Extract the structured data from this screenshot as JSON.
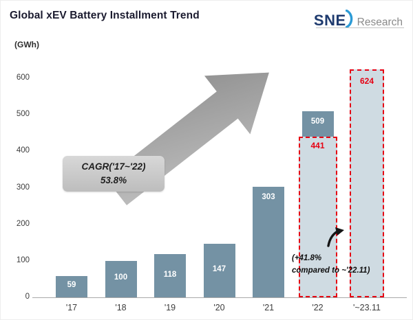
{
  "header": {
    "title": "Global xEV Battery Installment Trend",
    "logo_sne": "SNE",
    "logo_research": "Research"
  },
  "chart_data": {
    "type": "bar",
    "title": "Global xEV Battery Installment Trend",
    "unit_label": "(GWh)",
    "xlabel": "",
    "ylabel": "GWh",
    "ylim": [
      0,
      600
    ],
    "yticks": [
      0,
      100,
      200,
      300,
      400,
      500,
      600
    ],
    "grid": false,
    "legend": "none",
    "categories": [
      "'17",
      "'18",
      "'19",
      "'20",
      "'21",
      "'22",
      "'~23.11"
    ],
    "values": [
      59,
      100,
      118,
      147,
      303,
      509,
      624
    ],
    "bars": [
      {
        "category": "'17",
        "value": 59,
        "style": "solid"
      },
      {
        "category": "'18",
        "value": 100,
        "style": "solid"
      },
      {
        "category": "'19",
        "value": 118,
        "style": "solid"
      },
      {
        "category": "'20",
        "value": 147,
        "style": "solid"
      },
      {
        "category": "'21",
        "value": 303,
        "style": "solid"
      },
      {
        "category": "'22",
        "value": 509,
        "style": "solid",
        "estimate_overlay": 441
      },
      {
        "category": "'~23.11",
        "value": 624,
        "style": "projected"
      }
    ],
    "annotations": {
      "cagr_line1": "CAGR('17~'22)",
      "cagr_line2": "53.8%",
      "note_line1": "(+41.8%",
      "note_line2": "compared to ~'22.11)"
    },
    "colors": {
      "bar": "#7492a4",
      "projected_fill": "#cfdbe2",
      "highlight_red": "#e60012",
      "arrow_gray": "#9e9e9e"
    }
  }
}
